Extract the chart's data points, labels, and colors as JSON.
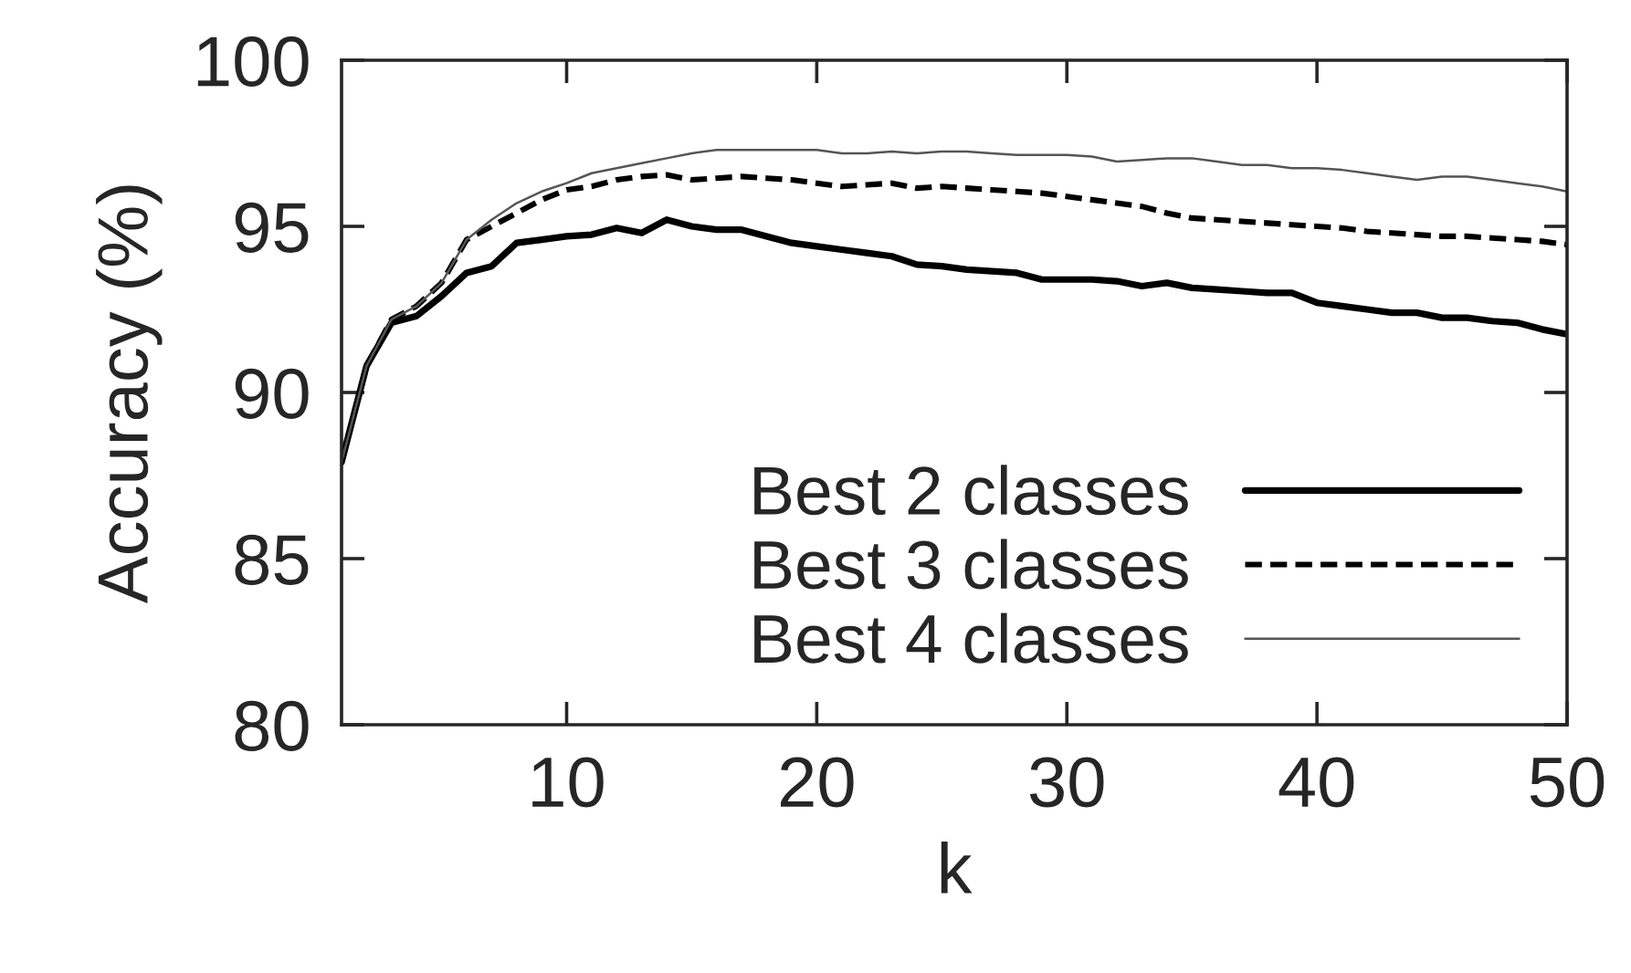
{
  "chart_data": {
    "type": "line",
    "xlabel": "k",
    "ylabel": "Accuracy (%)",
    "x": [
      1,
      2,
      3,
      4,
      5,
      6,
      7,
      8,
      9,
      10,
      11,
      12,
      13,
      14,
      15,
      16,
      17,
      18,
      19,
      20,
      21,
      22,
      23,
      24,
      25,
      26,
      27,
      28,
      29,
      30,
      31,
      32,
      33,
      34,
      35,
      36,
      37,
      38,
      39,
      40,
      41,
      42,
      43,
      44,
      45,
      46,
      47,
      48,
      49,
      50
    ],
    "series": [
      {
        "name": "Best 2 classes",
        "color": "#000000",
        "line_style": "solid",
        "values": [
          87.9,
          90.8,
          92.1,
          92.3,
          92.9,
          93.6,
          93.8,
          94.5,
          94.6,
          94.7,
          94.75,
          94.95,
          94.8,
          95.2,
          95.0,
          94.9,
          94.9,
          94.7,
          94.5,
          94.4,
          94.3,
          94.2,
          94.1,
          93.85,
          93.8,
          93.7,
          93.65,
          93.6,
          93.4,
          93.4,
          93.4,
          93.35,
          93.2,
          93.3,
          93.15,
          93.1,
          93.05,
          93.0,
          93.0,
          92.7,
          92.6,
          92.5,
          92.4,
          92.4,
          92.25,
          92.25,
          92.15,
          92.1,
          91.9,
          91.75
        ]
      },
      {
        "name": "Best 3 classes",
        "color": "#000000",
        "line_style": "dashed",
        "values": [
          87.9,
          90.8,
          92.2,
          92.6,
          93.3,
          94.6,
          95.0,
          95.4,
          95.8,
          96.1,
          96.2,
          96.4,
          96.5,
          96.55,
          96.4,
          96.45,
          96.5,
          96.45,
          96.4,
          96.3,
          96.2,
          96.25,
          96.3,
          96.15,
          96.2,
          96.15,
          96.1,
          96.05,
          96.0,
          95.9,
          95.8,
          95.7,
          95.6,
          95.4,
          95.25,
          95.2,
          95.15,
          95.1,
          95.05,
          95.0,
          94.95,
          94.85,
          94.8,
          94.75,
          94.7,
          94.7,
          94.65,
          94.6,
          94.55,
          94.45
        ]
      },
      {
        "name": "Best 4 classes",
        "color": "#555555",
        "line_style": "solid",
        "values": [
          87.9,
          90.8,
          92.2,
          92.6,
          93.3,
          94.6,
          95.2,
          95.7,
          96.05,
          96.3,
          96.6,
          96.75,
          96.9,
          97.05,
          97.2,
          97.3,
          97.3,
          97.3,
          97.3,
          97.3,
          97.2,
          97.2,
          97.25,
          97.2,
          97.25,
          97.25,
          97.2,
          97.15,
          97.15,
          97.15,
          97.1,
          96.95,
          97.0,
          97.05,
          97.05,
          96.95,
          96.85,
          96.85,
          96.75,
          96.75,
          96.7,
          96.6,
          96.5,
          96.4,
          96.5,
          96.5,
          96.4,
          96.3,
          96.2,
          96.05
        ]
      }
    ],
    "xlim": [
      1,
      50
    ],
    "xticks": [
      10,
      20,
      30,
      40,
      50
    ],
    "ylim": [
      80,
      100
    ],
    "yticks": [
      80,
      85,
      90,
      95,
      100
    ],
    "grid": false,
    "legend": "bottom right",
    "marker": "none"
  }
}
